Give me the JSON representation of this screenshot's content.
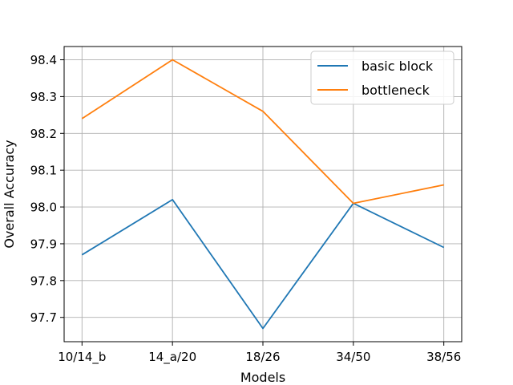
{
  "chart_data": {
    "type": "line",
    "categories": [
      "10/14_b",
      "14_a/20",
      "18/26",
      "34/50",
      "38/56"
    ],
    "series": [
      {
        "name": "basic block",
        "values": [
          97.87,
          98.02,
          97.67,
          98.01,
          97.89
        ],
        "color": "#1f77b4"
      },
      {
        "name": "bottleneck",
        "values": [
          98.24,
          98.4,
          98.26,
          98.01,
          98.06
        ],
        "color": "#ff7f0e"
      }
    ],
    "title": "",
    "xlabel": "Models",
    "ylabel": "Overall Accuracy",
    "ylim": [
      97.634,
      98.436
    ],
    "yticks": [
      "97.7",
      "97.8",
      "97.9",
      "98.0",
      "98.1",
      "98.2",
      "98.3",
      "98.4"
    ],
    "grid": true,
    "legend_position": "top-right"
  }
}
